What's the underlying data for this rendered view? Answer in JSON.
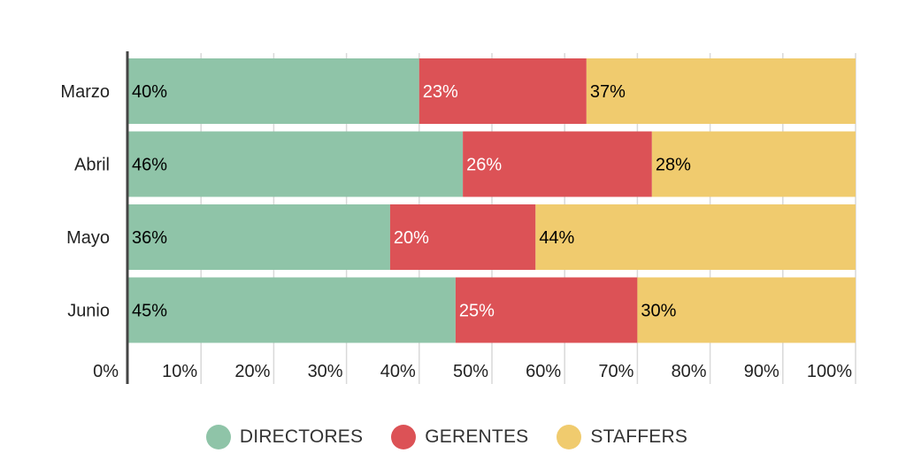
{
  "chart_data": {
    "type": "bar",
    "orientation": "horizontal",
    "stacked": true,
    "categories": [
      "Marzo",
      "Abril",
      "Mayo",
      "Junio"
    ],
    "series": [
      {
        "name": "DIRECTORES",
        "values": [
          40,
          46,
          36,
          45
        ],
        "color": "#8fc4a8",
        "label_color": "#000000"
      },
      {
        "name": "GERENTES",
        "values": [
          23,
          26,
          20,
          25
        ],
        "color": "#dc5256",
        "label_color": "#ffffff"
      },
      {
        "name": "STAFFERS",
        "values": [
          37,
          28,
          44,
          30
        ],
        "color": "#f0cb6e",
        "label_color": "#000000"
      }
    ],
    "value_labels": [
      [
        "40%",
        "46%",
        "36%",
        "45%"
      ],
      [
        "23%",
        "26%",
        "20%",
        "25%"
      ],
      [
        "37%",
        "28%",
        "44%",
        "30%"
      ]
    ],
    "x_ticks": [
      0,
      10,
      20,
      30,
      40,
      50,
      60,
      70,
      80,
      90,
      100
    ],
    "x_tick_labels": [
      "0%",
      "10%",
      "20%",
      "30%",
      "40%",
      "50%",
      "60%",
      "70%",
      "80%",
      "90%",
      "100%"
    ],
    "xlim": [
      0,
      100
    ],
    "grid": true,
    "legend_position": "bottom",
    "title": "",
    "xlabel": "",
    "ylabel": ""
  }
}
